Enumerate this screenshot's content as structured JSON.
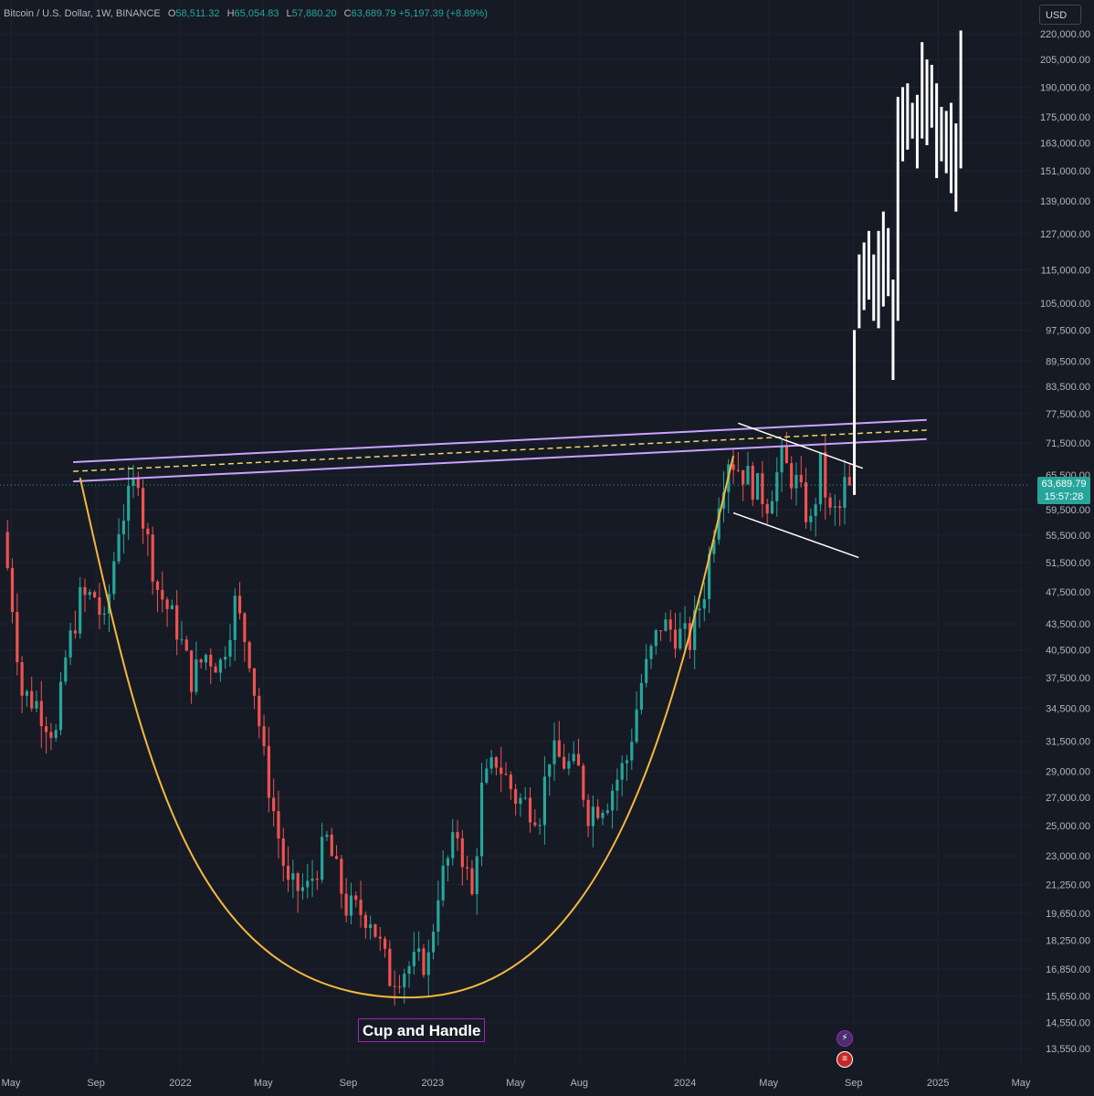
{
  "header": {
    "symbol": "Bitcoin / U.S. Dollar, 1W, BINANCE",
    "open_key": "O",
    "open": "58,511.32",
    "high_key": "H",
    "high": "65,054.83",
    "low_key": "L",
    "low": "57,880.20",
    "close_key": "C",
    "close": "63,689.79",
    "change": "+5,197.39 (+8.89%)"
  },
  "currency_button": "USD",
  "current_price": {
    "value": "63,689.79",
    "countdown": "15:57:28"
  },
  "annotation_label": "Cup and Handle",
  "event_icons": [
    "lightning-icon",
    "us-flag-icon"
  ],
  "colors": {
    "background": "#161a25",
    "bull": "#26a69a",
    "bear": "#ef5350",
    "cup_curve": "#f5b83d",
    "resistance_band": "#c9a3ff",
    "resistance_mid": "#e8d86a",
    "projection": "#ffffff",
    "label_border": "#9c27b0"
  },
  "chart_data": {
    "type": "candlestick",
    "title": "Bitcoin / U.S. Dollar, 1W, BINANCE",
    "y_scale": "log",
    "ylim": [
      13000,
      224000
    ],
    "y_ticks": [
      "220,000.00",
      "205,000.00",
      "190,000.00",
      "175,000.00",
      "163,000.00",
      "151,000.00",
      "139,000.00",
      "127,000.00",
      "115,000.00",
      "105,000.00",
      "97,500.00",
      "89,500.00",
      "83,500.00",
      "77,500.00",
      "71,500.00",
      "65,500.00",
      "59,500.00",
      "55,500.00",
      "51,500.00",
      "47,500.00",
      "43,500.00",
      "40,500.00",
      "37,500.00",
      "34,500.00",
      "31,500.00",
      "29,000.00",
      "27,000.00",
      "25,000.00",
      "23,000.00",
      "21,250.00",
      "19,650.00",
      "18,250.00",
      "16,850.00",
      "15,650.00",
      "14,550.00",
      "13,550.00"
    ],
    "x_ticks": [
      "May",
      "Sep",
      "2022",
      "May",
      "Sep",
      "2023",
      "May",
      "Aug",
      "2024",
      "May",
      "Sep",
      "2025",
      "May"
    ],
    "x_tick_dates": [
      "2021-05-01",
      "2021-09-01",
      "2022-01-01",
      "2022-05-01",
      "2022-09-01",
      "2023-01-01",
      "2023-05-01",
      "2023-08-01",
      "2024-01-01",
      "2024-05-01",
      "2024-09-01",
      "2025-01-01",
      "2025-05-01"
    ],
    "price_anchors": [
      [
        "2021-04-26",
        56000
      ],
      [
        "2021-05-10",
        46000
      ],
      [
        "2021-05-24",
        36000
      ],
      [
        "2021-06-14",
        35000
      ],
      [
        "2021-07-12",
        32000
      ],
      [
        "2021-07-26",
        39500
      ],
      [
        "2021-08-16",
        46500
      ],
      [
        "2021-09-06",
        47000
      ],
      [
        "2021-09-20",
        43000
      ],
      [
        "2021-10-11",
        57000
      ],
      [
        "2021-10-25",
        61000
      ],
      [
        "2021-11-08",
        66000
      ],
      [
        "2021-11-15",
        58000
      ],
      [
        "2021-12-06",
        48000
      ],
      [
        "2022-01-03",
        43000
      ],
      [
        "2022-01-24",
        37500
      ],
      [
        "2022-02-14",
        40000
      ],
      [
        "2022-03-07",
        39000
      ],
      [
        "2022-03-28",
        46000
      ],
      [
        "2022-04-18",
        40000
      ],
      [
        "2022-05-09",
        30000
      ],
      [
        "2022-06-13",
        21000
      ],
      [
        "2022-07-11",
        21000
      ],
      [
        "2022-08-08",
        24000
      ],
      [
        "2022-09-05",
        20000
      ],
      [
        "2022-10-10",
        19500
      ],
      [
        "2022-11-07",
        16500
      ],
      [
        "2022-12-05",
        17000
      ],
      [
        "2023-01-02",
        17300
      ],
      [
        "2023-01-16",
        21000
      ],
      [
        "2023-02-13",
        24500
      ],
      [
        "2023-03-06",
        20500
      ],
      [
        "2023-03-20",
        27500
      ],
      [
        "2023-04-10",
        30000
      ],
      [
        "2023-05-08",
        27000
      ],
      [
        "2023-06-12",
        26000
      ],
      [
        "2023-06-26",
        30500
      ],
      [
        "2023-08-07",
        29000
      ],
      [
        "2023-08-21",
        26000
      ],
      [
        "2023-09-18",
        27000
      ],
      [
        "2023-10-16",
        30000
      ],
      [
        "2023-11-06",
        37000
      ],
      [
        "2023-12-04",
        43500
      ],
      [
        "2024-01-15",
        41500
      ],
      [
        "2024-02-05",
        48000
      ],
      [
        "2024-02-26",
        62000
      ],
      [
        "2024-03-11",
        69000
      ],
      [
        "2024-04-08",
        65000
      ],
      [
        "2024-05-06",
        61000
      ],
      [
        "2024-05-27",
        68000
      ],
      [
        "2024-06-17",
        64000
      ],
      [
        "2024-07-08",
        57000
      ],
      [
        "2024-07-22",
        67000
      ],
      [
        "2024-08-05",
        58500
      ],
      [
        "2024-08-19",
        59500
      ],
      [
        "2024-08-26",
        63689.79
      ]
    ],
    "projection_bars": [
      {
        "date": "2024-09-02",
        "low": 62000,
        "high": 97500
      },
      {
        "date": "2024-09-09",
        "low": 98000,
        "high": 120000
      },
      {
        "date": "2024-09-16",
        "low": 103000,
        "high": 124000
      },
      {
        "date": "2024-09-23",
        "low": 106000,
        "high": 128000
      },
      {
        "date": "2024-09-30",
        "low": 100000,
        "high": 120000
      },
      {
        "date": "2024-10-07",
        "low": 98000,
        "high": 128000
      },
      {
        "date": "2024-10-14",
        "low": 104000,
        "high": 135000
      },
      {
        "date": "2024-10-21",
        "low": 107000,
        "high": 129000
      },
      {
        "date": "2024-10-28",
        "low": 85000,
        "high": 112000
      },
      {
        "date": "2024-11-04",
        "low": 100000,
        "high": 185000
      },
      {
        "date": "2024-11-11",
        "low": 155000,
        "high": 190000
      },
      {
        "date": "2024-11-18",
        "low": 160000,
        "high": 192000
      },
      {
        "date": "2024-11-25",
        "low": 165000,
        "high": 182000
      },
      {
        "date": "2024-12-02",
        "low": 152000,
        "high": 186000
      },
      {
        "date": "2024-12-09",
        "low": 165000,
        "high": 215000
      },
      {
        "date": "2024-12-16",
        "low": 162000,
        "high": 205000
      },
      {
        "date": "2024-12-23",
        "low": 170000,
        "high": 202000
      },
      {
        "date": "2024-12-30",
        "low": 148000,
        "high": 192000
      },
      {
        "date": "2025-01-06",
        "low": 155000,
        "high": 180000
      },
      {
        "date": "2025-01-13",
        "low": 150000,
        "high": 178000
      },
      {
        "date": "2025-01-20",
        "low": 142000,
        "high": 182000
      },
      {
        "date": "2025-01-27",
        "low": 135000,
        "high": 172000
      },
      {
        "date": "2025-02-03",
        "low": 152000,
        "high": 222000
      }
    ],
    "resistance_band": {
      "upper": [
        [
          "2021-09-01",
          68000
        ],
        [
          "2024-09-01",
          75800
        ]
      ],
      "mid": [
        [
          "2021-09-01",
          66300
        ],
        [
          "2024-09-01",
          73700
        ]
      ],
      "lower": [
        [
          "2021-09-01",
          64500
        ],
        [
          "2024-09-01",
          71900
        ]
      ]
    },
    "handle_channel": {
      "upper": [
        [
          "2024-03-18",
          75500
        ],
        [
          "2024-09-01",
          66700
        ]
      ],
      "lower": [
        [
          "2024-03-11",
          59000
        ],
        [
          "2024-08-26",
          52200
        ]
      ]
    },
    "cup_curve": {
      "start": [
        "2021-08-09",
        65000
      ],
      "bottom": [
        "2022-12-12",
        15600
      ],
      "end": [
        "2024-03-11",
        69000
      ]
    }
  }
}
